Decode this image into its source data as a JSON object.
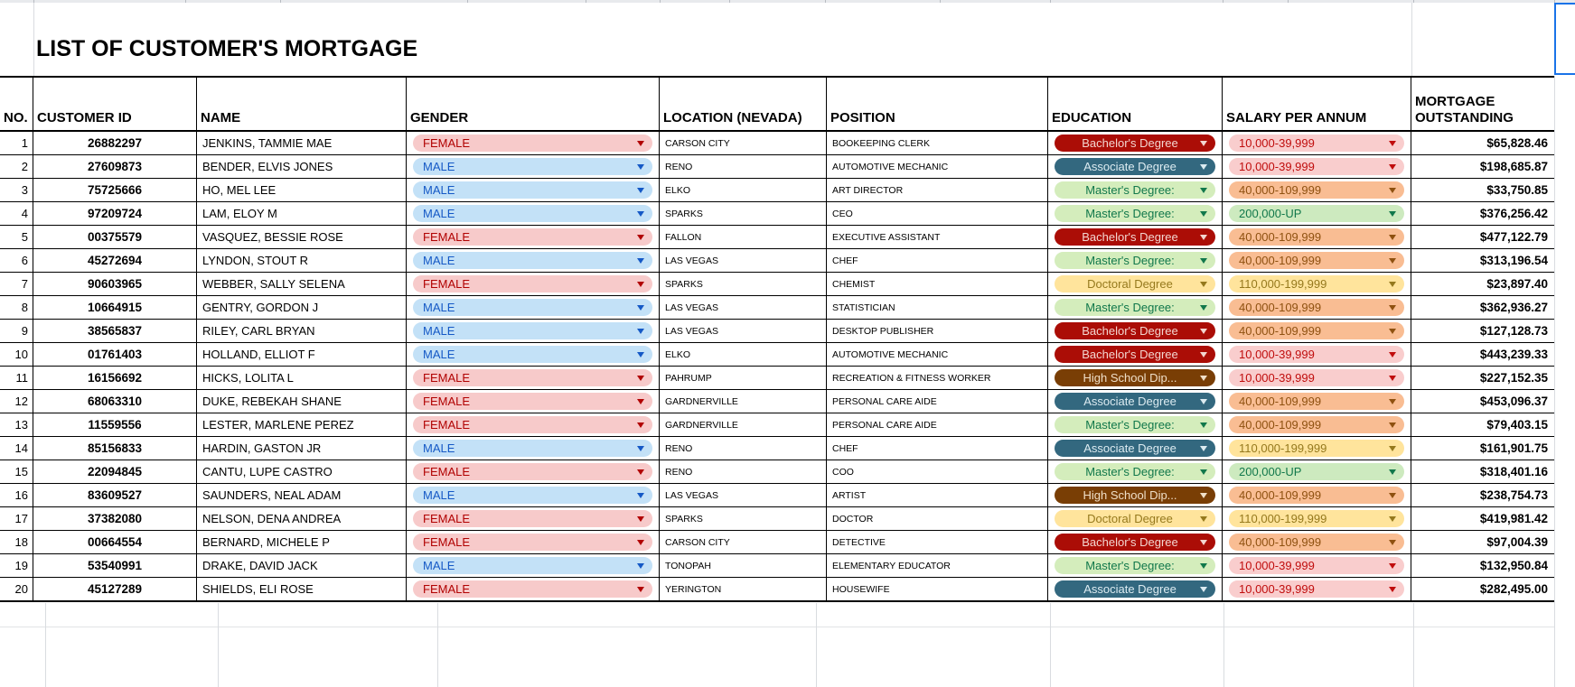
{
  "title": "LIST OF CUSTOMER'S MORTGAGE",
  "selection_color": "#1a73e8",
  "chip_styles": {
    "female": {
      "bg": "#f7caca",
      "fg": "#b10202"
    },
    "male": {
      "bg": "#c3e1f7",
      "fg": "#1559c6"
    },
    "bachelors": {
      "bg": "#ab0d06",
      "fg": "#f3d6d0"
    },
    "associate": {
      "bg": "#33687f",
      "fg": "#dcebf1"
    },
    "masters": {
      "bg": "#d4edbc",
      "fg": "#11784b"
    },
    "doctoral": {
      "bg": "#ffe49c",
      "fg": "#95791d"
    },
    "highschool": {
      "bg": "#793e05",
      "fg": "#f0dfc8"
    },
    "salary_low": {
      "bg": "#f9cdcd",
      "fg": "#c00d0d"
    },
    "salary_mid": {
      "bg": "#f9bd93",
      "fg": "#8f5110"
    },
    "salary_high": {
      "bg": "#ffe49c",
      "fg": "#95791d"
    },
    "salary_top": {
      "bg": "#cdeabf",
      "fg": "#11784b"
    }
  },
  "table": {
    "columns": [
      {
        "key": "no",
        "label": "NO."
      },
      {
        "key": "customer_id",
        "label": "CUSTOMER ID"
      },
      {
        "key": "name",
        "label": "NAME"
      },
      {
        "key": "gender",
        "label": "GENDER"
      },
      {
        "key": "location",
        "label": "LOCATION (NEVADA)"
      },
      {
        "key": "position",
        "label": "POSITION"
      },
      {
        "key": "education",
        "label": "EDUCATION"
      },
      {
        "key": "salary",
        "label": "SALARY PER ANNUM"
      },
      {
        "key": "mortgage",
        "label": "MORTGAGE OUTSTANDING"
      }
    ],
    "rows": [
      {
        "no": "1",
        "customer_id": "26882297",
        "name": "JENKINS, TAMMIE MAE",
        "gender": "FEMALE",
        "gender_style": "female",
        "location": "CARSON CITY",
        "position": "BOOKEEPING CLERK",
        "education": "Bachelor's Degree",
        "education_style": "bachelors",
        "salary": "10,000-39,999",
        "salary_style": "salary_low",
        "mortgage": "$65,828.46"
      },
      {
        "no": "2",
        "customer_id": "27609873",
        "name": "BENDER, ELVIS JONES",
        "gender": "MALE",
        "gender_style": "male",
        "location": "RENO",
        "position": "AUTOMOTIVE MECHANIC",
        "education": "Associate Degree",
        "education_style": "associate",
        "salary": "10,000-39,999",
        "salary_style": "salary_low",
        "mortgage": "$198,685.87"
      },
      {
        "no": "3",
        "customer_id": "75725666",
        "name": "HO, MEL LEE",
        "gender": "MALE",
        "gender_style": "male",
        "location": "ELKO",
        "position": "ART DIRECTOR",
        "education": "Master's Degree:",
        "education_style": "masters",
        "salary": "40,000-109,999",
        "salary_style": "salary_mid",
        "mortgage": "$33,750.85"
      },
      {
        "no": "4",
        "customer_id": "97209724",
        "name": "LAM, ELOY M",
        "gender": "MALE",
        "gender_style": "male",
        "location": "SPARKS",
        "position": "CEO",
        "education": "Master's Degree:",
        "education_style": "masters",
        "salary": "200,000-UP",
        "salary_style": "salary_top",
        "mortgage": "$376,256.42"
      },
      {
        "no": "5",
        "customer_id": "00375579",
        "name": "VASQUEZ, BESSIE ROSE",
        "gender": "FEMALE",
        "gender_style": "female",
        "location": "FALLON",
        "position": "EXECUTIVE ASSISTANT",
        "education": "Bachelor's Degree",
        "education_style": "bachelors",
        "salary": "40,000-109,999",
        "salary_style": "salary_mid",
        "mortgage": "$477,122.79"
      },
      {
        "no": "6",
        "customer_id": "45272694",
        "name": "LYNDON, STOUT R",
        "gender": "MALE",
        "gender_style": "male",
        "location": "LAS VEGAS",
        "position": "CHEF",
        "education": "Master's Degree:",
        "education_style": "masters",
        "salary": "40,000-109,999",
        "salary_style": "salary_mid",
        "mortgage": "$313,196.54"
      },
      {
        "no": "7",
        "customer_id": "90603965",
        "name": "WEBBER, SALLY SELENA",
        "gender": "FEMALE",
        "gender_style": "female",
        "location": "SPARKS",
        "position": "CHEMIST",
        "education": "Doctoral Degree",
        "education_style": "doctoral",
        "salary": "110,000-199,999",
        "salary_style": "salary_high",
        "mortgage": "$23,897.40"
      },
      {
        "no": "8",
        "customer_id": "10664915",
        "name": "GENTRY, GORDON J",
        "gender": "MALE",
        "gender_style": "male",
        "location": "LAS VEGAS",
        "position": "STATISTICIAN",
        "education": "Master's Degree:",
        "education_style": "masters",
        "salary": "40,000-109,999",
        "salary_style": "salary_mid",
        "mortgage": "$362,936.27"
      },
      {
        "no": "9",
        "customer_id": "38565837",
        "name": "RILEY, CARL BRYAN",
        "gender": "MALE",
        "gender_style": "male",
        "location": "LAS VEGAS",
        "position": "DESKTOP PUBLISHER",
        "education": "Bachelor's Degree",
        "education_style": "bachelors",
        "salary": "40,000-109,999",
        "salary_style": "salary_mid",
        "mortgage": "$127,128.73"
      },
      {
        "no": "10",
        "customer_id": "01761403",
        "name": "HOLLAND, ELLIOT F",
        "gender": "MALE",
        "gender_style": "male",
        "location": "ELKO",
        "position": "AUTOMOTIVE MECHANIC",
        "education": "Bachelor's Degree",
        "education_style": "bachelors",
        "salary": "10,000-39,999",
        "salary_style": "salary_low",
        "mortgage": "$443,239.33"
      },
      {
        "no": "11",
        "customer_id": "16156692",
        "name": "HICKS, LOLITA L",
        "gender": "FEMALE",
        "gender_style": "female",
        "location": "PAHRUMP",
        "position": "RECREATION & FITNESS WORKER",
        "education": "High School Dip...",
        "education_style": "highschool",
        "salary": "10,000-39,999",
        "salary_style": "salary_low",
        "mortgage": "$227,152.35"
      },
      {
        "no": "12",
        "customer_id": "68063310",
        "name": "DUKE, REBEKAH SHANE",
        "gender": "FEMALE",
        "gender_style": "female",
        "location": "GARDNERVILLE",
        "position": "PERSONAL CARE AIDE",
        "education": "Associate Degree",
        "education_style": "associate",
        "salary": "40,000-109,999",
        "salary_style": "salary_mid",
        "mortgage": "$453,096.37"
      },
      {
        "no": "13",
        "customer_id": "11559556",
        "name": "LESTER, MARLENE PEREZ",
        "gender": "FEMALE",
        "gender_style": "female",
        "location": "GARDNERVILLE",
        "position": "PERSONAL CARE AIDE",
        "education": "Master's Degree:",
        "education_style": "masters",
        "salary": "40,000-109,999",
        "salary_style": "salary_mid",
        "mortgage": "$79,403.15"
      },
      {
        "no": "14",
        "customer_id": "85156833",
        "name": "HARDIN, GASTON JR",
        "gender": "MALE",
        "gender_style": "male",
        "location": "RENO",
        "position": "CHEF",
        "education": "Associate Degree",
        "education_style": "associate",
        "salary": "110,000-199,999",
        "salary_style": "salary_high",
        "mortgage": "$161,901.75"
      },
      {
        "no": "15",
        "customer_id": "22094845",
        "name": "CANTU, LUPE CASTRO",
        "gender": "FEMALE",
        "gender_style": "female",
        "location": "RENO",
        "position": "COO",
        "education": "Master's Degree:",
        "education_style": "masters",
        "salary": "200,000-UP",
        "salary_style": "salary_top",
        "mortgage": "$318,401.16"
      },
      {
        "no": "16",
        "customer_id": "83609527",
        "name": "SAUNDERS, NEAL ADAM",
        "gender": "MALE",
        "gender_style": "male",
        "location": "LAS VEGAS",
        "position": "ARTIST",
        "education": "High School Dip...",
        "education_style": "highschool",
        "salary": "40,000-109,999",
        "salary_style": "salary_mid",
        "mortgage": "$238,754.73"
      },
      {
        "no": "17",
        "customer_id": "37382080",
        "name": "NELSON, DENA ANDREA",
        "gender": "FEMALE",
        "gender_style": "female",
        "location": "SPARKS",
        "position": "DOCTOR",
        "education": "Doctoral Degree",
        "education_style": "doctoral",
        "salary": "110,000-199,999",
        "salary_style": "salary_high",
        "mortgage": "$419,981.42"
      },
      {
        "no": "18",
        "customer_id": "00664554",
        "name": "BERNARD, MICHELE P",
        "gender": "FEMALE",
        "gender_style": "female",
        "location": "CARSON CITY",
        "position": "DETECTIVE",
        "education": "Bachelor's Degree",
        "education_style": "bachelors",
        "salary": "40,000-109,999",
        "salary_style": "salary_mid",
        "mortgage": "$97,004.39"
      },
      {
        "no": "19",
        "customer_id": "53540991",
        "name": "DRAKE, DAVID JACK",
        "gender": "MALE",
        "gender_style": "male",
        "location": "TONOPAH",
        "position": "ELEMENTARY EDUCATOR",
        "education": "Master's Degree:",
        "education_style": "masters",
        "salary": "10,000-39,999",
        "salary_style": "salary_low",
        "mortgage": "$132,950.84"
      },
      {
        "no": "20",
        "customer_id": "45127289",
        "name": "SHIELDS, ELI ROSE",
        "gender": "FEMALE",
        "gender_style": "female",
        "location": "YERINGTON",
        "position": "HOUSEWIFE",
        "education": "Associate Degree",
        "education_style": "associate",
        "salary": "10,000-39,999",
        "salary_style": "salary_low",
        "mortgage": "$282,495.00"
      }
    ]
  }
}
